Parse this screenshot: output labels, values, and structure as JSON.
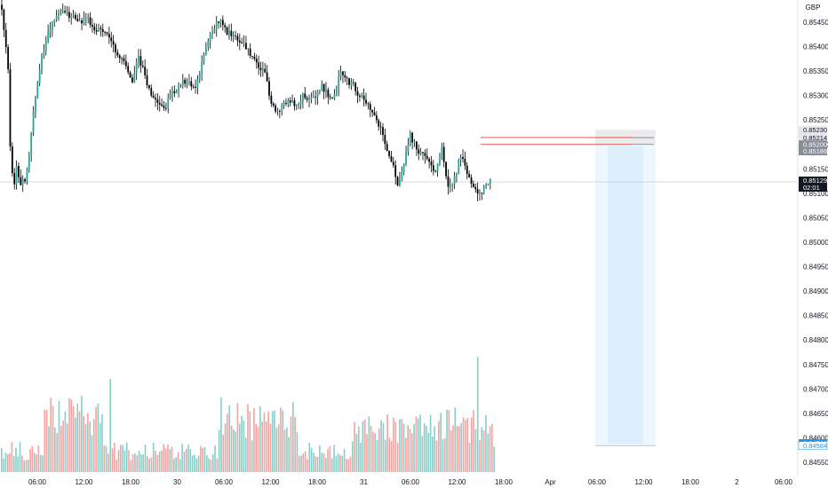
{
  "chart_data": {
    "type": "candlestick",
    "currency": "GBP",
    "y_axis": {
      "ticks": [
        "0.85450",
        "0.85400",
        "0.85350",
        "0.85300",
        "0.85250",
        "0.85200",
        "0.85150",
        "0.85100",
        "0.85050",
        "0.85000",
        "0.84950",
        "0.84900",
        "0.84850",
        "0.84800",
        "0.84750",
        "0.84700",
        "0.84650",
        "0.84600",
        "0.84550"
      ],
      "range": [
        0.8453,
        0.8548
      ]
    },
    "x_axis": {
      "ticks": [
        "06:00",
        "12:00",
        "18:00",
        "30",
        "06:00",
        "12:00",
        "18:00",
        "31",
        "06:00",
        "12:00",
        "18:00",
        "Apr",
        "06:00",
        "12:00",
        "18:00",
        "2",
        "06:00"
      ]
    },
    "price_anchors": [
      [
        0,
        0.8548
      ],
      [
        1,
        0.8544
      ],
      [
        3,
        0.8535
      ],
      [
        4,
        0.852
      ],
      [
        5,
        0.8514
      ],
      [
        6,
        0.8512
      ],
      [
        7,
        0.8515
      ],
      [
        9,
        0.8512
      ],
      [
        11,
        0.8513
      ],
      [
        13,
        0.8518
      ],
      [
        15,
        0.8527
      ],
      [
        17,
        0.8533
      ],
      [
        19,
        0.8538
      ],
      [
        21,
        0.8541
      ],
      [
        23,
        0.8544
      ],
      [
        26,
        0.8546
      ],
      [
        29,
        0.8547
      ],
      [
        32,
        0.85465
      ],
      [
        35,
        0.8546
      ],
      [
        38,
        0.8545
      ],
      [
        41,
        0.8546
      ],
      [
        44,
        0.8543
      ],
      [
        47,
        0.8544
      ],
      [
        50,
        0.8542
      ],
      [
        53,
        0.854
      ],
      [
        56,
        0.8538
      ],
      [
        59,
        0.8536
      ],
      [
        62,
        0.8533
      ],
      [
        65,
        0.8538
      ],
      [
        68,
        0.8534
      ],
      [
        71,
        0.853
      ],
      [
        74,
        0.8528
      ],
      [
        77,
        0.8527
      ],
      [
        80,
        0.853
      ],
      [
        83,
        0.8531
      ],
      [
        86,
        0.8533
      ],
      [
        89,
        0.8533
      ],
      [
        92,
        0.8531
      ],
      [
        95,
        0.8537
      ],
      [
        98,
        0.8541
      ],
      [
        101,
        0.8544
      ],
      [
        104,
        0.8546
      ],
      [
        107,
        0.8543
      ],
      [
        110,
        0.8542
      ],
      [
        113,
        0.8541
      ],
      [
        116,
        0.854
      ],
      [
        119,
        0.8538
      ],
      [
        122,
        0.8536
      ],
      [
        125,
        0.8535
      ],
      [
        128,
        0.8528
      ],
      [
        131,
        0.8527
      ],
      [
        134,
        0.8528
      ],
      [
        137,
        0.8529
      ],
      [
        140,
        0.8528
      ],
      [
        143,
        0.853
      ],
      [
        146,
        0.8529
      ],
      [
        149,
        0.853
      ],
      [
        152,
        0.8532
      ],
      [
        155,
        0.853
      ],
      [
        158,
        0.853
      ],
      [
        161,
        0.8535
      ],
      [
        164,
        0.8533
      ],
      [
        167,
        0.8532
      ],
      [
        169,
        0.853
      ],
      [
        171,
        0.853
      ],
      [
        174,
        0.8528
      ],
      [
        177,
        0.8526
      ],
      [
        180,
        0.8523
      ],
      [
        182,
        0.852
      ],
      [
        185,
        0.8517
      ],
      [
        188,
        0.8512
      ],
      [
        191,
        0.8516
      ],
      [
        194,
        0.8522
      ],
      [
        197,
        0.8519
      ],
      [
        200,
        0.8518
      ],
      [
        203,
        0.8516
      ],
      [
        206,
        0.8514
      ],
      [
        209,
        0.8519
      ],
      [
        212,
        0.8511
      ],
      [
        215,
        0.8513
      ],
      [
        218,
        0.8518
      ],
      [
        221,
        0.8514
      ],
      [
        224,
        0.8511
      ],
      [
        227,
        0.851
      ],
      [
        230,
        0.8512
      ],
      [
        232,
        0.85129
      ]
    ],
    "last_price": "0.85129",
    "countdown": "02:01",
    "horizontal_levels": [
      {
        "price": "0.85214",
        "color": "#e0574f"
      },
      {
        "price": "0.85200",
        "color": "#e0574f"
      }
    ],
    "price_tags": [
      {
        "price": "0.85230",
        "bg": "#e4e6ec",
        "fg": "#131722"
      },
      {
        "price": "0.85214",
        "bg": "#e4e6ec",
        "fg": "#131722"
      },
      {
        "price": "0.85200",
        "bg": "#888c97",
        "fg": "#ffffff"
      },
      {
        "price": "0.85186",
        "bg": "#888c97",
        "fg": "#ffffff"
      },
      {
        "price": "0.84589",
        "bg": "#2196f3",
        "fg": "#ffffff"
      },
      {
        "price": "0.84584",
        "bg": "#ffffff",
        "fg": "#2196f3"
      }
    ],
    "position_box": {
      "stop_zone": [
        "0.85230",
        "0.85200"
      ],
      "target_zone": [
        "0.85200",
        "0.84584"
      ],
      "start_time": "Apr 03:30",
      "end_time": "Apr 14:30"
    },
    "colors": {
      "up": "#26a69a",
      "down": "#ef5350",
      "candle": "#000000"
    }
  }
}
